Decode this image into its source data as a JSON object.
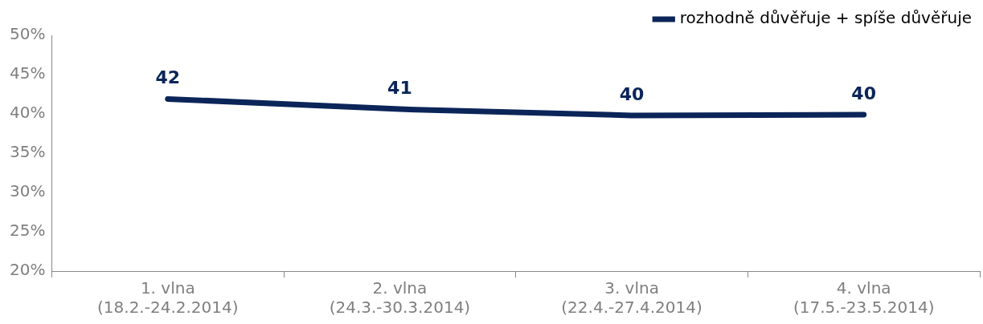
{
  "chart_data": {
    "type": "line",
    "categories": [
      "1. vlna\n(18.2.-24.2.2014)",
      "2. vlna\n(24.3.-30.3.2014)",
      "3. vlna\n(22.4.-27.4.2014)",
      "4. vlna\n(17.5.-23.5.2014)"
    ],
    "series": [
      {
        "name": "rozhodně důvěřuje + spíše důvěřuje",
        "color": "#0b2559",
        "values": [
          41.9,
          40.6,
          39.8,
          39.9
        ],
        "value_labels": [
          "42",
          "41",
          "40",
          "40"
        ]
      }
    ],
    "ylim": [
      20,
      50
    ],
    "yticks": [
      {
        "value": 20,
        "label": "20%"
      },
      {
        "value": 25,
        "label": "25%"
      },
      {
        "value": 30,
        "label": "30%"
      },
      {
        "value": 35,
        "label": "35%"
      },
      {
        "value": 40,
        "label": "40%"
      },
      {
        "value": 45,
        "label": "45%"
      },
      {
        "value": 50,
        "label": "50%"
      }
    ],
    "grid": false,
    "legend": "top right",
    "marker": "none",
    "line_style": "solid"
  }
}
